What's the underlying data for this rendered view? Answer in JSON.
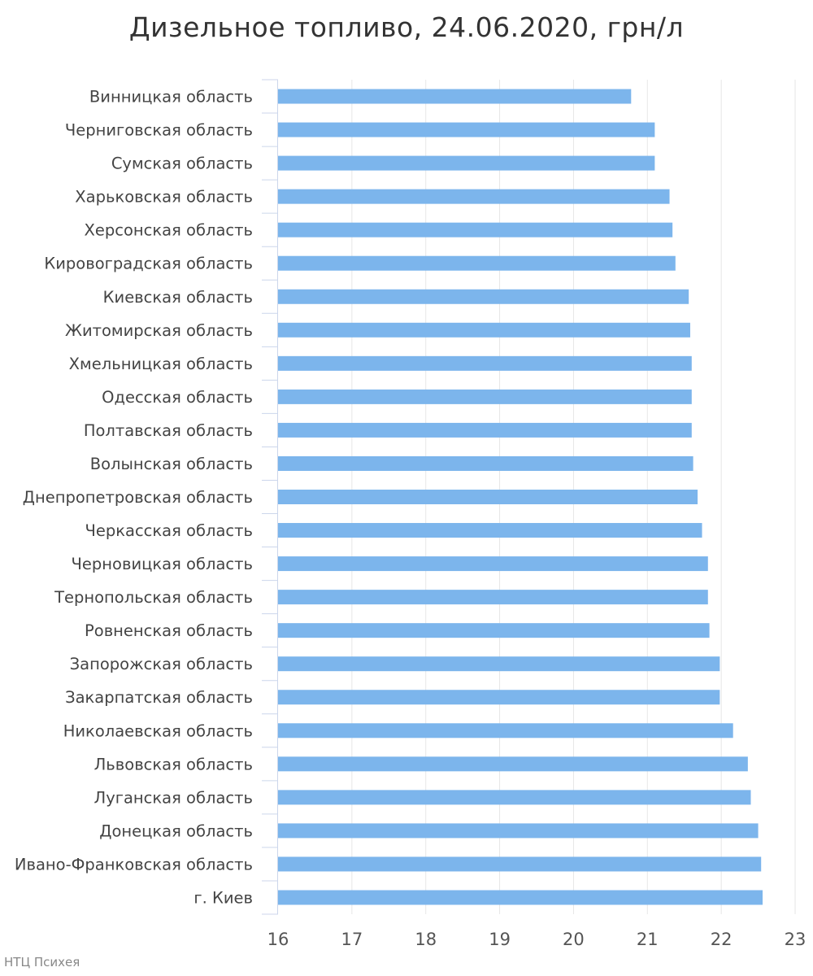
{
  "chart_data": {
    "type": "bar",
    "orientation": "horizontal",
    "title": "Дизельное топливо, 24.06.2020, грн/л",
    "categories": [
      "Винницкая область",
      "Черниговская область",
      "Сумская область",
      "Харьковская область",
      "Херсонская область",
      "Кировоградская область",
      "Киевская область",
      "Житомирская область",
      "Хмельницкая область",
      "Одесская область",
      "Полтавская область",
      "Волынская область",
      "Днепропетровская область",
      "Черкасская область",
      "Черновицкая область",
      "Тернопольская область",
      "Ровненская область",
      "Запорожская область",
      "Закарпатская область",
      "Николаевская область",
      "Львовская область",
      "Луганская область",
      "Донецкая область",
      "Ивано-Франковская область",
      "г. Киев"
    ],
    "values": [
      20.78,
      21.1,
      21.1,
      21.3,
      21.34,
      21.38,
      21.56,
      21.58,
      21.6,
      21.6,
      21.6,
      21.62,
      21.68,
      21.74,
      21.82,
      21.82,
      21.84,
      21.98,
      21.98,
      22.16,
      22.36,
      22.4,
      22.5,
      22.54,
      22.56
    ],
    "xlim": [
      16,
      23
    ],
    "xticks": [
      "16",
      "17",
      "18",
      "19",
      "20",
      "21",
      "22",
      "23"
    ],
    "grid": "vertical",
    "bar_color": "#7cb5ec",
    "legend": "none"
  },
  "credit": "НТЦ Психея"
}
